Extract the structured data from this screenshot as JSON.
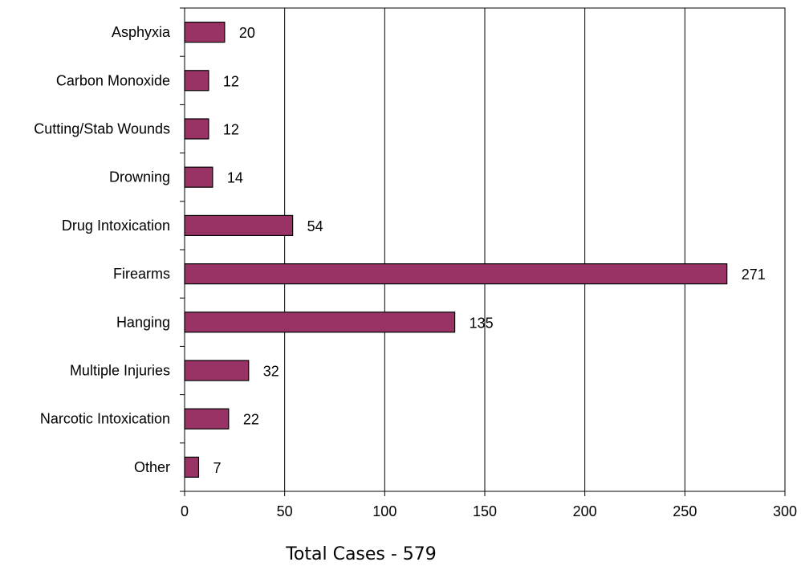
{
  "chart_data": {
    "type": "bar",
    "orientation": "horizontal",
    "categories": [
      "Asphyxia",
      "Carbon Monoxide",
      "Cutting/Stab Wounds",
      "Drowning",
      "Drug Intoxication",
      "Firearms",
      "Hanging",
      "Multiple Injuries",
      "Narcotic Intoxication",
      "Other"
    ],
    "values": [
      20,
      12,
      12,
      14,
      54,
      271,
      135,
      32,
      22,
      7
    ],
    "data_labels": [
      "20",
      "12",
      "12",
      "14",
      "54",
      "271",
      "135",
      "32",
      "22",
      "7"
    ],
    "title": "",
    "xlabel": "Total Cases - 579",
    "ylabel": "",
    "xlim": [
      0,
      300
    ],
    "xticks": [
      0,
      50,
      100,
      150,
      200,
      250,
      300
    ],
    "xtick_labels": [
      "0",
      "50",
      "100",
      "150",
      "200",
      "250",
      "300"
    ],
    "grid": "vertical-major",
    "legend": "none",
    "bar_color": "#993366",
    "bar_outline_color": "#000000"
  }
}
